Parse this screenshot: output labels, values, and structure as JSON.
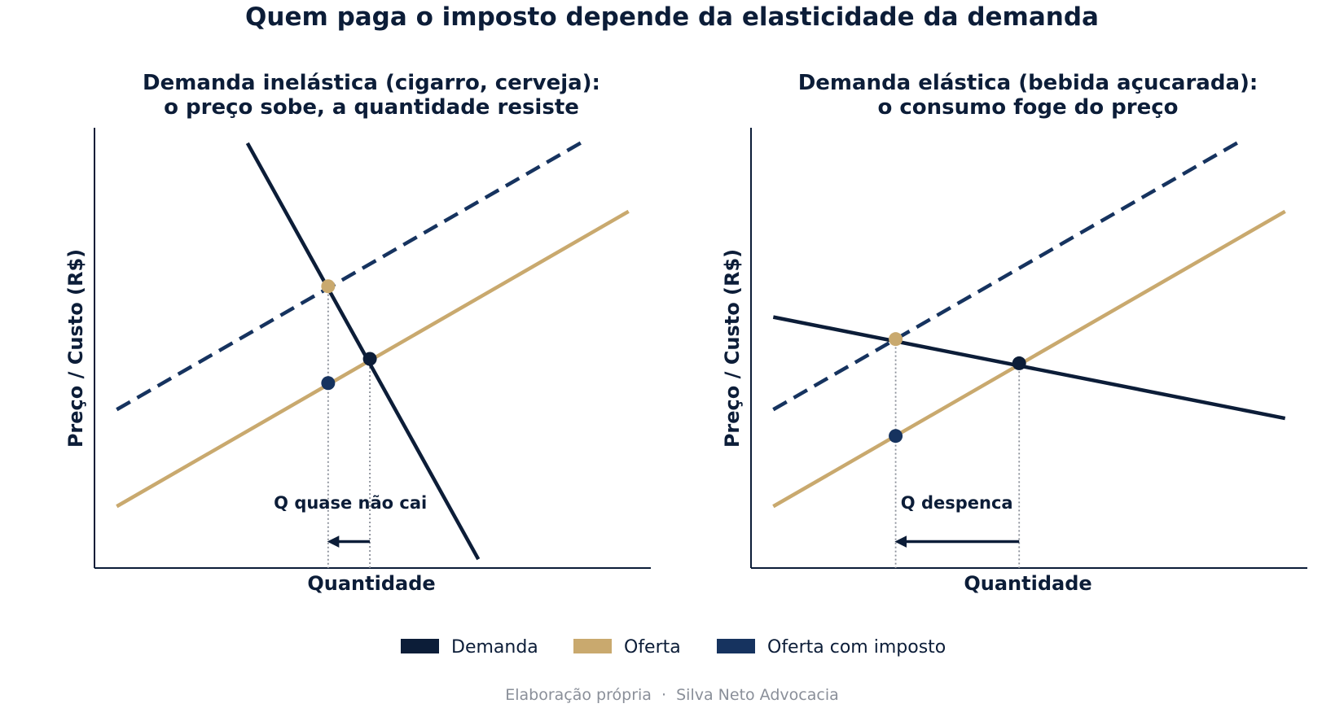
{
  "figure": {
    "title": "Quem paga o imposto depende da elasticidade da demanda",
    "source": "Elaboração própria  ·  Silva Neto Advocacia"
  },
  "colors": {
    "demand": "#0c1d38",
    "supply": "#c9a96e",
    "supply_tax": "#16335f",
    "guide": "#8a8f99"
  },
  "legend": [
    {
      "label": "Demanda",
      "color": "#0c1d38"
    },
    {
      "label": "Oferta",
      "color": "#c9a96e"
    },
    {
      "label": "Oferta com imposto",
      "color": "#16335f"
    }
  ],
  "chart_data": [
    {
      "type": "line",
      "title_lines": [
        "Demanda inelástica (cigarro, cerveja):",
        "o preço sobe, a quantidade resiste"
      ],
      "xlabel": "Quantidade",
      "ylabel": "Preço / Custo (R$)",
      "xlim": [
        0,
        10
      ],
      "ylim": [
        0,
        10
      ],
      "ticks_visible": false,
      "grid": false,
      "legend_position": "bottom-center",
      "series": [
        {
          "name": "Oferta",
          "style": "solid",
          "x": [
            0.4,
            9.6
          ],
          "y": [
            1.4,
            8.1
          ]
        },
        {
          "name": "Oferta com imposto",
          "style": "dashed",
          "x": [
            0.4,
            8.8
          ],
          "y": [
            3.6,
            9.7
          ]
        },
        {
          "name": "Demanda",
          "style": "solid",
          "x": [
            2.75,
            6.9
          ],
          "y": [
            9.65,
            0.2
          ]
        }
      ],
      "points": [
        {
          "role": "equilibrium",
          "x": 4.95,
          "y": 4.75
        },
        {
          "role": "tax_price",
          "x": 4.2,
          "y": 6.4
        },
        {
          "role": "net_price",
          "x": 4.2,
          "y": 4.2
        }
      ],
      "annotation": {
        "text": "Q quase não cai",
        "arrow_from": 4.95,
        "arrow_to": 4.2,
        "text_x": 4.6,
        "text_y": 1.35
      }
    },
    {
      "type": "line",
      "title_lines": [
        "Demanda elástica (bebida açucarada):",
        "o consumo foge do preço"
      ],
      "xlabel": "Quantidade",
      "ylabel": "Preço / Custo (R$)",
      "xlim": [
        0,
        10
      ],
      "ylim": [
        0,
        10
      ],
      "ticks_visible": false,
      "grid": false,
      "legend_position": "bottom-center",
      "series": [
        {
          "name": "Oferta",
          "style": "solid",
          "x": [
            0.4,
            9.6
          ],
          "y": [
            1.4,
            8.1
          ]
        },
        {
          "name": "Oferta com imposto",
          "style": "dashed",
          "x": [
            0.4,
            8.8
          ],
          "y": [
            3.6,
            9.7
          ]
        },
        {
          "name": "Demanda",
          "style": "solid",
          "x": [
            0.4,
            9.6
          ],
          "y": [
            5.7,
            3.4
          ]
        }
      ],
      "points": [
        {
          "role": "equilibrium",
          "x": 4.82,
          "y": 4.65
        },
        {
          "role": "tax_price",
          "x": 2.6,
          "y": 5.2
        },
        {
          "role": "net_price",
          "x": 2.6,
          "y": 3.0
        }
      ],
      "annotation": {
        "text": "Q despenca",
        "arrow_from": 4.82,
        "arrow_to": 2.6,
        "text_x": 3.7,
        "text_y": 1.35
      }
    }
  ]
}
